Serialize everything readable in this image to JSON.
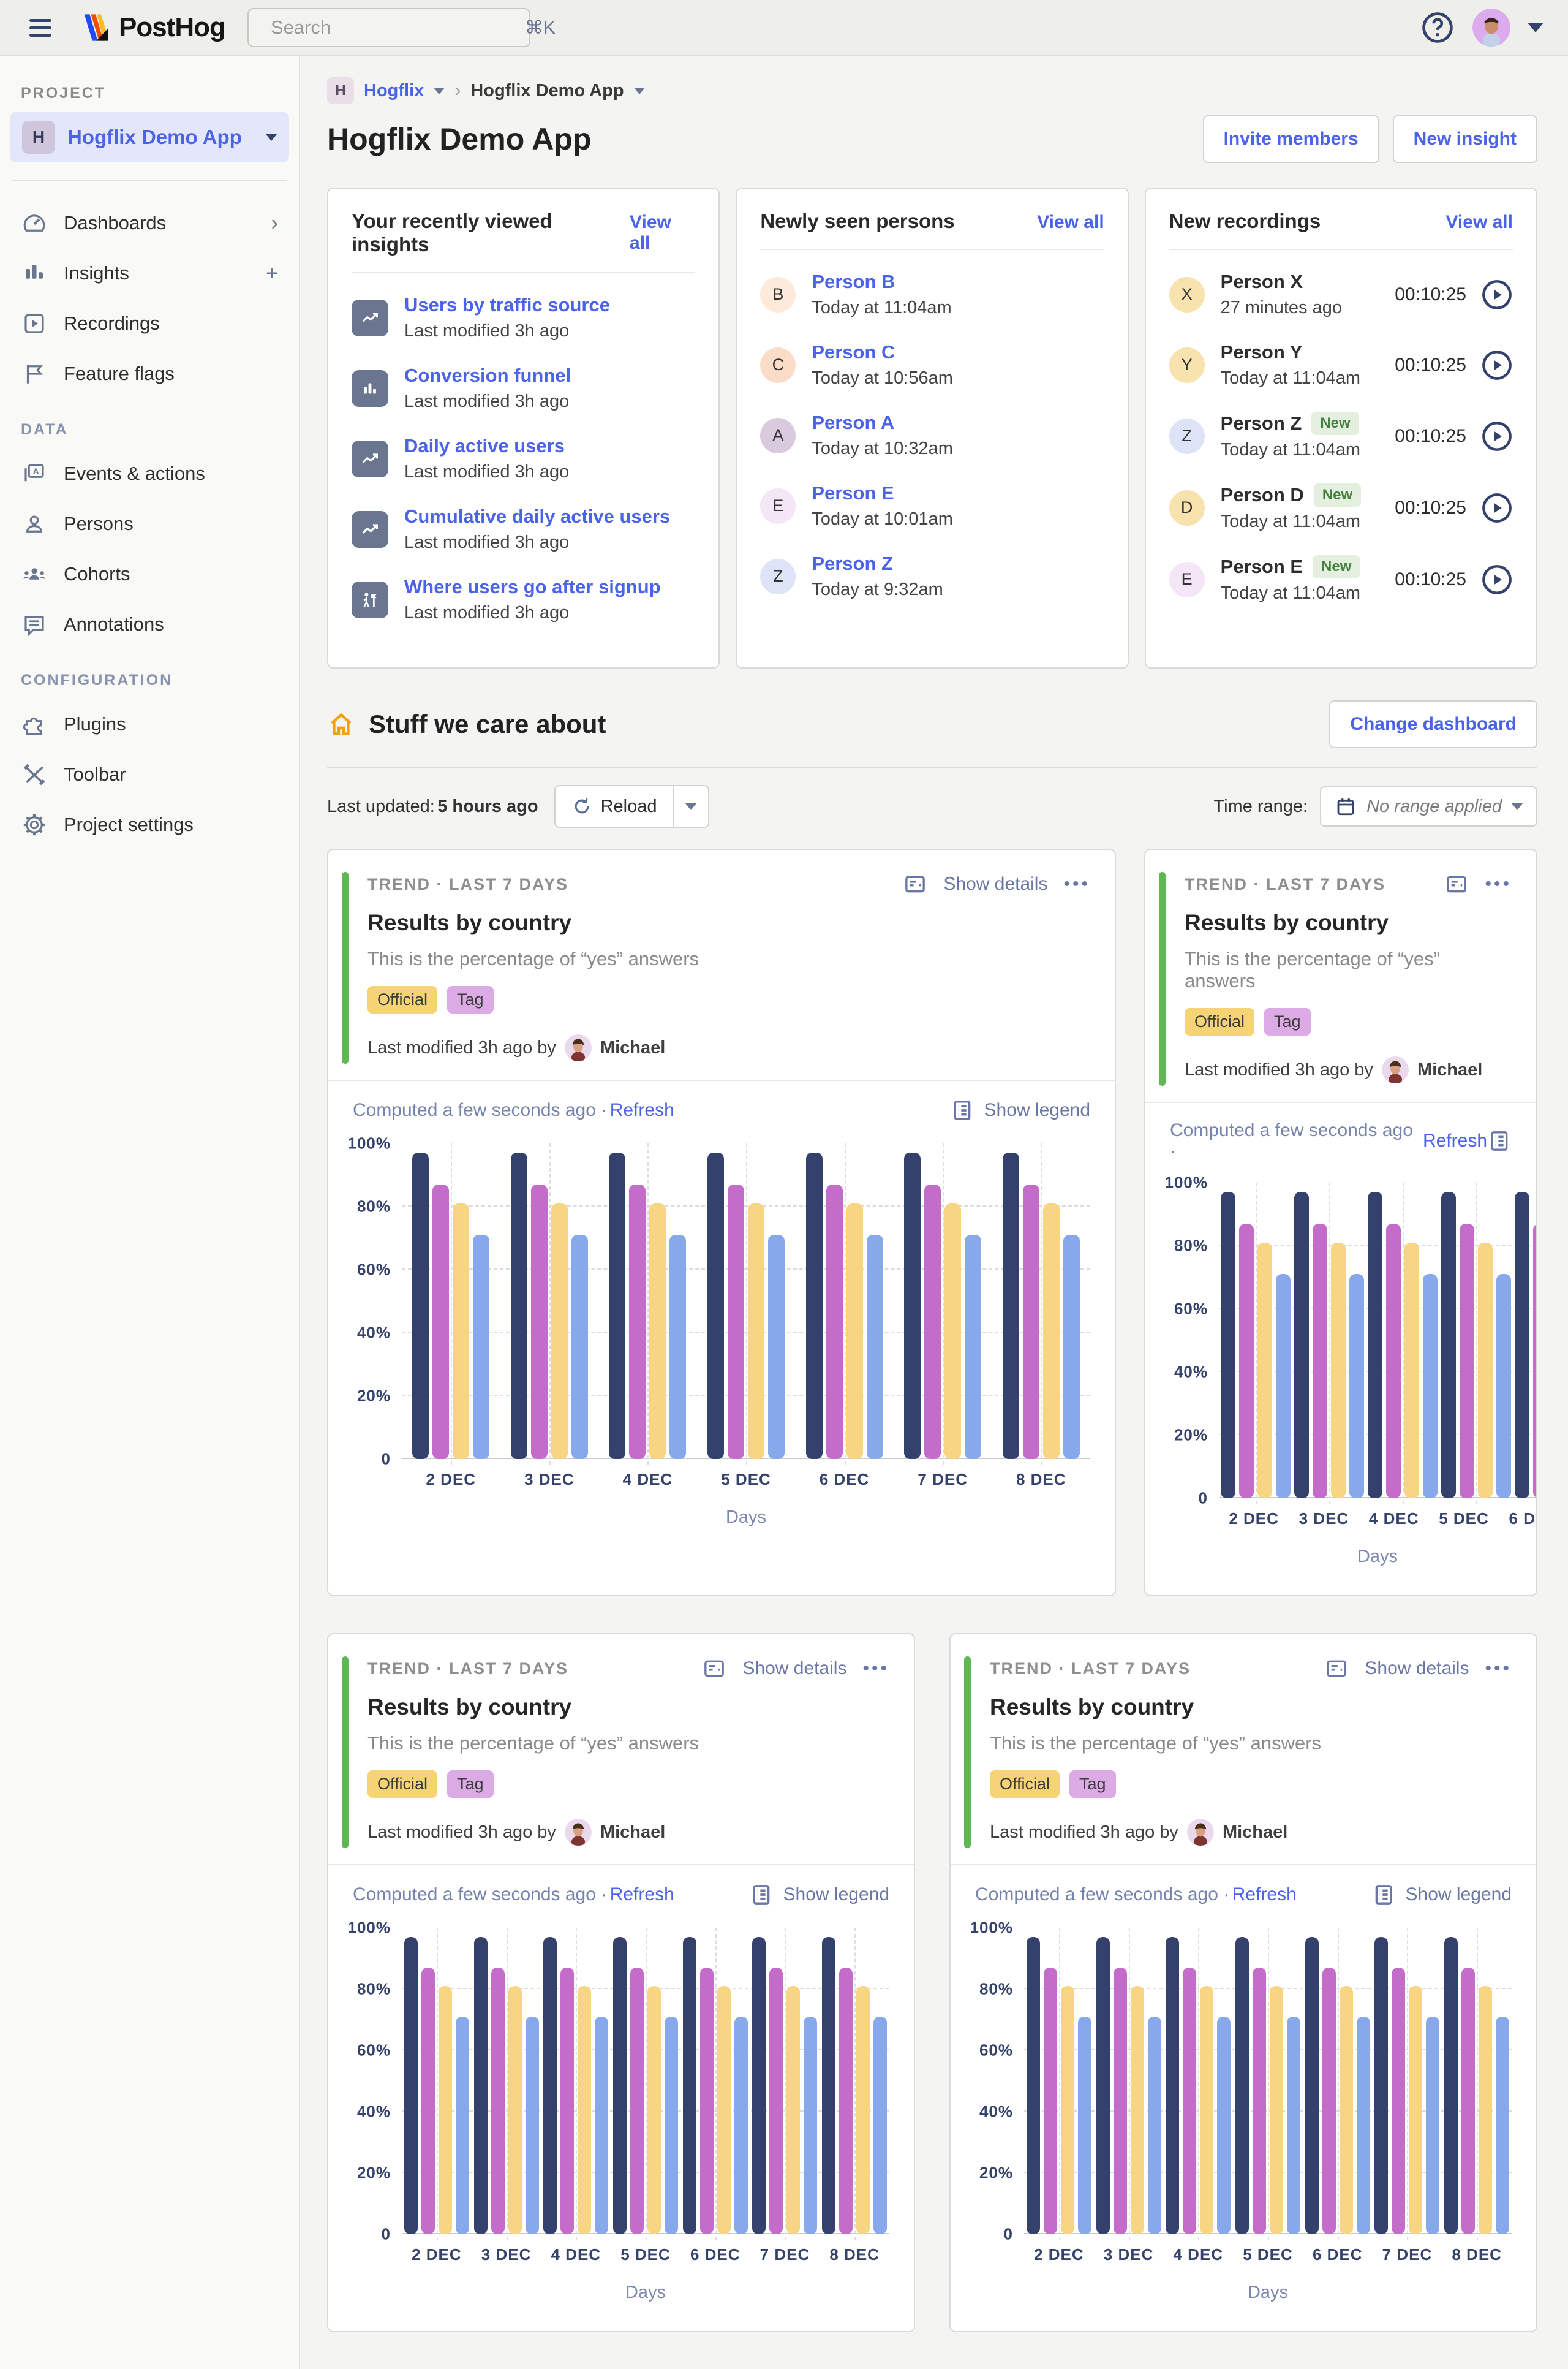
{
  "topbar": {
    "brand": "PostHog",
    "search_placeholder": "Search",
    "search_shortcut": "⌘K"
  },
  "sidebar": {
    "project_label": "PROJECT",
    "project": {
      "initial": "H",
      "name": "Hogflix Demo App"
    },
    "nav_main": [
      {
        "icon": "dashboard",
        "label": "Dashboards",
        "chevron": true
      },
      {
        "icon": "insights",
        "label": "Insights",
        "plus": true
      },
      {
        "icon": "recordings",
        "label": "Recordings"
      },
      {
        "icon": "flag",
        "label": "Feature flags"
      }
    ],
    "data_label": "DATA",
    "nav_data": [
      {
        "icon": "events",
        "label": "Events & actions"
      },
      {
        "icon": "person",
        "label": "Persons"
      },
      {
        "icon": "cohorts",
        "label": "Cohorts"
      },
      {
        "icon": "annotations",
        "label": "Annotations"
      }
    ],
    "config_label": "CONFIGURATION",
    "nav_config": [
      {
        "icon": "plugins",
        "label": "Plugins"
      },
      {
        "icon": "toolbar",
        "label": "Toolbar"
      },
      {
        "icon": "settings",
        "label": "Project settings"
      }
    ]
  },
  "header": {
    "breadcrumb": {
      "initial": "H",
      "org": "Hogflix",
      "page": "Hogflix Demo App"
    },
    "title": "Hogflix Demo App",
    "invite_button": "Invite members",
    "new_insight_button": "New insight"
  },
  "cards": {
    "insights": {
      "title": "Your recently viewed insights",
      "view_all": "View all",
      "items": [
        {
          "icon": "trend",
          "name": "Users by traffic source",
          "meta": "Last modified 3h ago"
        },
        {
          "icon": "bars",
          "name": "Conversion funnel",
          "meta": "Last modified 3h ago"
        },
        {
          "icon": "trend",
          "name": "Daily active users",
          "meta": "Last modified 3h ago"
        },
        {
          "icon": "trend",
          "name": "Cumulative daily active users",
          "meta": "Last modified 3h ago"
        },
        {
          "icon": "path",
          "name": "Where users go after signup",
          "meta": "Last modified 3h ago"
        }
      ]
    },
    "persons": {
      "title": "Newly seen persons",
      "view_all": "View all",
      "items": [
        {
          "initial": "B",
          "name": "Person B",
          "time": "Today at 11:04am",
          "color": "#fdeada"
        },
        {
          "initial": "C",
          "name": "Person C",
          "time": "Today at 10:56am",
          "color": "#fbdcc9"
        },
        {
          "initial": "A",
          "name": "Person A",
          "time": "Today at 10:32am",
          "color": "#d9cbdd"
        },
        {
          "initial": "E",
          "name": "Person E",
          "time": "Today at 10:01am",
          "color": "#f4e6f7"
        },
        {
          "initial": "Z",
          "name": "Person Z",
          "time": "Today at 9:32am",
          "color": "#dde4f7"
        }
      ]
    },
    "recordings": {
      "title": "New recordings",
      "view_all": "View all",
      "new_label": "New",
      "items": [
        {
          "initial": "X",
          "name": "Person X",
          "time": "27 minutes ago",
          "duration": "00:10:25",
          "color": "#f8e3ae"
        },
        {
          "initial": "Y",
          "name": "Person Y",
          "time": "Today at 11:04am",
          "duration": "00:10:25",
          "color": "#f8e3ae"
        },
        {
          "initial": "Z",
          "name": "Person Z",
          "new": true,
          "time": "Today at 11:04am",
          "duration": "00:10:25",
          "color": "#dde4f7"
        },
        {
          "initial": "D",
          "name": "Person D",
          "new": true,
          "time": "Today at 11:04am",
          "duration": "00:10:25",
          "color": "#f8e3ae"
        },
        {
          "initial": "E",
          "name": "Person E",
          "new": true,
          "time": "Today at 11:04am",
          "duration": "00:10:25",
          "color": "#f4e6f7"
        }
      ]
    }
  },
  "dashboard": {
    "title": "Stuff we care about",
    "change_button": "Change dashboard",
    "last_updated_label": "Last updated:",
    "last_updated_value": "5 hours ago",
    "reload_label": "Reload",
    "time_range_label": "Time range:",
    "time_range_value": "No range applied"
  },
  "insight_card": {
    "kicker": "TREND · LAST 7 DAYS",
    "title": "Results by country",
    "description": "This is the percentage of “yes” answers",
    "tag_official": "Official",
    "tag_generic": "Tag",
    "show_details": "Show details",
    "more": "•••",
    "modified_prefix": "Last modified 3h ago by",
    "author": "Michael",
    "computed": "Computed a few seconds ago ·",
    "refresh": "Refresh",
    "show_legend": "Show legend"
  },
  "chart_data": {
    "type": "bar",
    "title": "Results by country",
    "categories": [
      "2 DEC",
      "3 DEC",
      "4 DEC",
      "5 DEC",
      "6 DEC",
      "7 DEC",
      "8 DEC"
    ],
    "series": [
      {
        "name": "navy",
        "color": "#35416d",
        "values": [
          97,
          97,
          97,
          97,
          97,
          97,
          97
        ]
      },
      {
        "name": "purple",
        "color": "#c46cc9",
        "values": [
          87,
          87,
          87,
          87,
          87,
          87,
          87
        ]
      },
      {
        "name": "yellow",
        "color": "#f8d583",
        "values": [
          81,
          81,
          81,
          81,
          81,
          81,
          81
        ]
      },
      {
        "name": "blue",
        "color": "#87a9ec",
        "values": [
          71,
          71,
          71,
          71,
          71,
          71,
          71
        ]
      }
    ],
    "xlabel": "Days",
    "ylabel": "",
    "ylim": [
      0,
      100
    ],
    "yticks": [
      "100%",
      "80%",
      "60%",
      "40%",
      "20%",
      "0"
    ],
    "grid": true,
    "legend_position": "hidden"
  }
}
